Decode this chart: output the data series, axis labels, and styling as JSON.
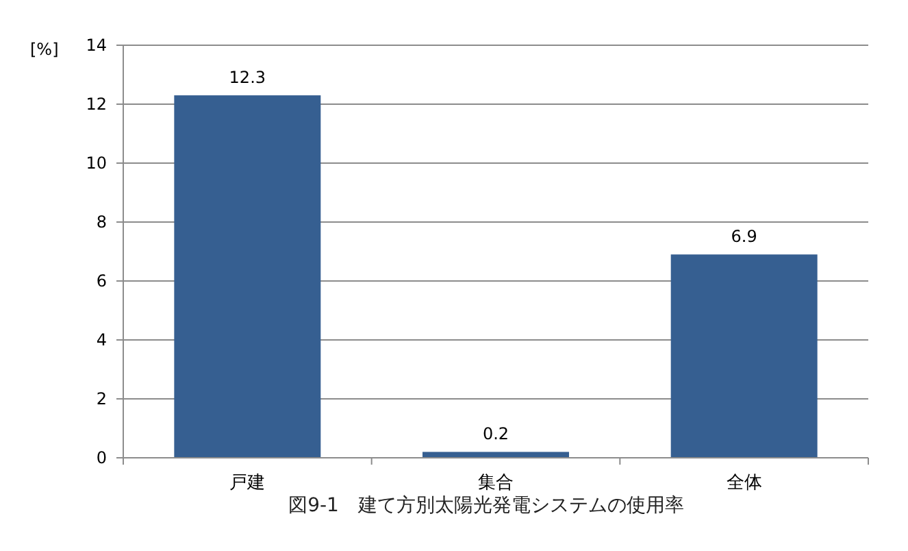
{
  "chart_data": {
    "type": "bar",
    "title": "図9-1　建て方別太陽光発電システムの使用率",
    "ylabel": "[%]",
    "categories": [
      "戸建",
      "集合",
      "全体"
    ],
    "values": [
      12.3,
      0.2,
      6.9
    ],
    "color": "#365f91",
    "ylim": [
      0,
      14
    ],
    "yticks": [
      0,
      2,
      4,
      6,
      8,
      10,
      12,
      14
    ],
    "grid": "y",
    "data_labels": true
  }
}
